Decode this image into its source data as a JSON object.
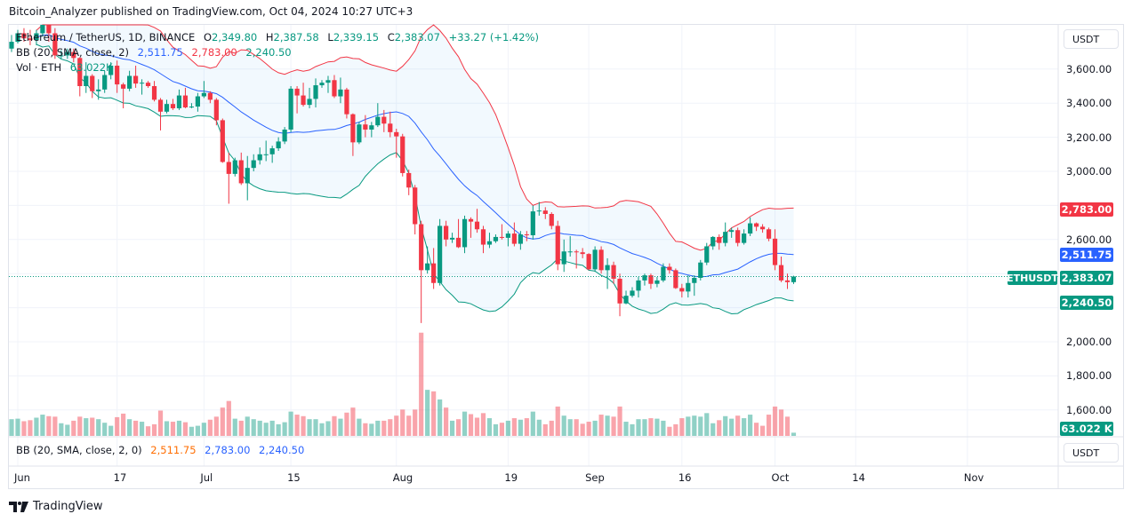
{
  "header": {
    "published": "Bitcoin_Analyzer published on TradingView.com, Oct 04, 2024 10:27 UTC+3"
  },
  "legend": {
    "symbol": "Ethereum / TetherUS, 1D, BINANCE",
    "o_label": "O",
    "o": "2,349.80",
    "h_label": "H",
    "h": "2,387.58",
    "l_label": "L",
    "l": "2,339.15",
    "c_label": "C",
    "c": "2,383.07",
    "change": "+33.27 (+1.42%)",
    "bb_label": "BB (20, SMA, close, 2)",
    "bb_basis": "2,511.75",
    "bb_upper": "2,783.00",
    "bb_lower": "2,240.50",
    "vol_label": "Vol · ETH",
    "vol_value": "63.022K"
  },
  "lower_pane": {
    "bb_label": "BB (20, SMA, close, 2, 0)",
    "v1": "2,511.75",
    "v2": "2,783.00",
    "v3": "2,240.50"
  },
  "axis": {
    "currency": "USDT",
    "price_labels": [
      "3,600.00",
      "3,400.00",
      "3,200.00",
      "3,000.00",
      "2,600.00",
      "2,000.00",
      "1,800.00",
      "1,600.00"
    ],
    "badges": {
      "upper": "2,783.00",
      "basis": "2,511.75",
      "last": "2,383.07",
      "lower": "2,240.50",
      "volume": "63.022 K",
      "symbol": "ETHUSDT"
    },
    "time_labels": [
      "Jun",
      "17",
      "Jul",
      "15",
      "Aug",
      "19",
      "Sep",
      "16",
      "Oct",
      "14",
      "Nov"
    ]
  },
  "footer": {
    "brand": "TradingView"
  },
  "colors": {
    "up": "#089981",
    "down": "#f23645",
    "basis": "#2962ff",
    "upper": "#f23645",
    "lower": "#089981",
    "band_fill": "#2196f3",
    "orange": "#ff6d00"
  },
  "chart_data": {
    "type": "candlestick",
    "symbol": "ETHUSDT",
    "interval": "1D",
    "start_date": "2024-05-31",
    "end_date": "2024-10-04",
    "ylim": [
      1500,
      3900
    ],
    "grid": true,
    "y_ticks": [
      1600,
      1800,
      2000,
      2200,
      2400,
      2600,
      2800,
      3000,
      3200,
      3400,
      3600
    ],
    "x_ticks": [
      {
        "date": "2024-06-01",
        "label": "Jun"
      },
      {
        "date": "2024-06-17",
        "label": "17"
      },
      {
        "date": "2024-07-01",
        "label": "Jul"
      },
      {
        "date": "2024-07-15",
        "label": "15"
      },
      {
        "date": "2024-08-01",
        "label": "Aug"
      },
      {
        "date": "2024-08-19",
        "label": "19"
      },
      {
        "date": "2024-09-01",
        "label": "Sep"
      },
      {
        "date": "2024-09-16",
        "label": "16"
      },
      {
        "date": "2024-10-01",
        "label": "Oct"
      },
      {
        "date": "2024-10-14",
        "label": "14"
      },
      {
        "date": "2024-11-01",
        "label": "Nov"
      }
    ],
    "indicators": {
      "bollinger": {
        "length": 20,
        "mult": 2,
        "last_basis": 2511.75,
        "last_upper": 2783.0,
        "last_lower": 2240.5
      }
    },
    "ohlc": [
      [
        3720,
        3800,
        3700,
        3760
      ],
      [
        3760,
        3830,
        3750,
        3810
      ],
      [
        3810,
        3840,
        3760,
        3780
      ],
      [
        3780,
        3830,
        3740,
        3770
      ],
      [
        3770,
        3830,
        3740,
        3810
      ],
      [
        3810,
        3890,
        3790,
        3865
      ],
      [
        3865,
        3880,
        3760,
        3810
      ],
      [
        3810,
        3840,
        3660,
        3680
      ],
      [
        3680,
        3710,
        3660,
        3680
      ],
      [
        3680,
        3720,
        3660,
        3700
      ],
      [
        3700,
        3720,
        3640,
        3665
      ],
      [
        3665,
        3670,
        3440,
        3500
      ],
      [
        3500,
        3640,
        3460,
        3560
      ],
      [
        3560,
        3570,
        3430,
        3470
      ],
      [
        3470,
        3540,
        3420,
        3480
      ],
      [
        3480,
        3590,
        3460,
        3565
      ],
      [
        3565,
        3640,
        3540,
        3620
      ],
      [
        3620,
        3650,
        3460,
        3510
      ],
      [
        3510,
        3520,
        3370,
        3485
      ],
      [
        3485,
        3590,
        3470,
        3560
      ],
      [
        3560,
        3620,
        3490,
        3515
      ],
      [
        3515,
        3540,
        3450,
        3520
      ],
      [
        3520,
        3530,
        3490,
        3500
      ],
      [
        3500,
        3530,
        3410,
        3420
      ],
      [
        3420,
        3430,
        3240,
        3350
      ],
      [
        3350,
        3420,
        3340,
        3395
      ],
      [
        3395,
        3425,
        3360,
        3370
      ],
      [
        3370,
        3480,
        3360,
        3445
      ],
      [
        3445,
        3490,
        3370,
        3375
      ],
      [
        3375,
        3400,
        3370,
        3380
      ],
      [
        3380,
        3460,
        3350,
        3440
      ],
      [
        3440,
        3530,
        3430,
        3460
      ],
      [
        3460,
        3470,
        3400,
        3420
      ],
      [
        3420,
        3430,
        3270,
        3300
      ],
      [
        3300,
        3310,
        3050,
        3055
      ],
      [
        3055,
        3110,
        2810,
        2985
      ],
      [
        2985,
        3080,
        2970,
        3065
      ],
      [
        3065,
        3110,
        2920,
        2930
      ],
      [
        2930,
        3090,
        2830,
        3020
      ],
      [
        3020,
        3100,
        3000,
        3065
      ],
      [
        3065,
        3140,
        3040,
        3100
      ],
      [
        3100,
        3180,
        3060,
        3100
      ],
      [
        3100,
        3150,
        3050,
        3135
      ],
      [
        3135,
        3200,
        3120,
        3175
      ],
      [
        3175,
        3260,
        3160,
        3245
      ],
      [
        3245,
        3500,
        3230,
        3485
      ],
      [
        3485,
        3500,
        3340,
        3445
      ],
      [
        3445,
        3520,
        3380,
        3390
      ],
      [
        3390,
        3490,
        3370,
        3425
      ],
      [
        3425,
        3545,
        3375,
        3505
      ],
      [
        3505,
        3535,
        3490,
        3520
      ],
      [
        3520,
        3560,
        3460,
        3535
      ],
      [
        3535,
        3565,
        3430,
        3440
      ],
      [
        3440,
        3550,
        3400,
        3480
      ],
      [
        3480,
        3490,
        3310,
        3335
      ],
      [
        3335,
        3340,
        3090,
        3170
      ],
      [
        3170,
        3290,
        3160,
        3275
      ],
      [
        3275,
        3330,
        3200,
        3245
      ],
      [
        3245,
        3290,
        3200,
        3270
      ],
      [
        3270,
        3400,
        3260,
        3320
      ],
      [
        3320,
        3360,
        3230,
        3280
      ],
      [
        3280,
        3350,
        3200,
        3230
      ],
      [
        3230,
        3250,
        3080,
        3205
      ],
      [
        3205,
        3220,
        2970,
        2990
      ],
      [
        2990,
        3010,
        2860,
        2905
      ],
      [
        2905,
        2920,
        2630,
        2690
      ],
      [
        2690,
        2710,
        2110,
        2420
      ],
      [
        2420,
        2560,
        2400,
        2460
      ],
      [
        2460,
        2550,
        2310,
        2345
      ],
      [
        2345,
        2720,
        2330,
        2680
      ],
      [
        2680,
        2710,
        2560,
        2600
      ],
      [
        2600,
        2640,
        2580,
        2610
      ],
      [
        2610,
        2720,
        2550,
        2555
      ],
      [
        2555,
        2740,
        2520,
        2720
      ],
      [
        2720,
        2730,
        2610,
        2705
      ],
      [
        2705,
        2780,
        2640,
        2660
      ],
      [
        2660,
        2680,
        2520,
        2570
      ],
      [
        2570,
        2640,
        2550,
        2590
      ],
      [
        2590,
        2630,
        2580,
        2615
      ],
      [
        2615,
        2690,
        2600,
        2610
      ],
      [
        2610,
        2650,
        2560,
        2635
      ],
      [
        2635,
        2700,
        2560,
        2575
      ],
      [
        2575,
        2650,
        2540,
        2630
      ],
      [
        2630,
        2650,
        2590,
        2625
      ],
      [
        2625,
        2800,
        2600,
        2765
      ],
      [
        2765,
        2820,
        2740,
        2770
      ],
      [
        2770,
        2790,
        2720,
        2750
      ],
      [
        2750,
        2760,
        2660,
        2680
      ],
      [
        2680,
        2710,
        2420,
        2455
      ],
      [
        2455,
        2600,
        2410,
        2530
      ],
      [
        2530,
        2620,
        2500,
        2530
      ],
      [
        2530,
        2540,
        2430,
        2525
      ],
      [
        2525,
        2550,
        2490,
        2515
      ],
      [
        2515,
        2520,
        2420,
        2425
      ],
      [
        2425,
        2560,
        2410,
        2540
      ],
      [
        2540,
        2560,
        2400,
        2420
      ],
      [
        2420,
        2490,
        2310,
        2450
      ],
      [
        2450,
        2470,
        2340,
        2370
      ],
      [
        2370,
        2400,
        2150,
        2225
      ],
      [
        2225,
        2300,
        2220,
        2270
      ],
      [
        2270,
        2320,
        2260,
        2300
      ],
      [
        2300,
        2380,
        2260,
        2360
      ],
      [
        2360,
        2400,
        2330,
        2390
      ],
      [
        2390,
        2400,
        2310,
        2340
      ],
      [
        2340,
        2380,
        2320,
        2360
      ],
      [
        2360,
        2460,
        2350,
        2440
      ],
      [
        2440,
        2460,
        2400,
        2420
      ],
      [
        2420,
        2430,
        2310,
        2315
      ],
      [
        2315,
        2340,
        2260,
        2295
      ],
      [
        2295,
        2390,
        2260,
        2345
      ],
      [
        2345,
        2390,
        2270,
        2375
      ],
      [
        2375,
        2480,
        2360,
        2465
      ],
      [
        2465,
        2580,
        2450,
        2560
      ],
      [
        2560,
        2620,
        2540,
        2615
      ],
      [
        2615,
        2630,
        2540,
        2580
      ],
      [
        2580,
        2700,
        2560,
        2645
      ],
      [
        2645,
        2670,
        2610,
        2655
      ],
      [
        2655,
        2670,
        2560,
        2580
      ],
      [
        2580,
        2660,
        2570,
        2635
      ],
      [
        2635,
        2730,
        2620,
        2695
      ],
      [
        2695,
        2700,
        2650,
        2675
      ],
      [
        2675,
        2690,
        2640,
        2660
      ],
      [
        2660,
        2670,
        2590,
        2605
      ],
      [
        2605,
        2660,
        2420,
        2450
      ],
      [
        2450,
        2500,
        2350,
        2360
      ],
      [
        2360,
        2400,
        2310,
        2350
      ],
      [
        2349.8,
        2387.58,
        2339.15,
        2383.07
      ]
    ],
    "volume_k": [
      330,
      340,
      290,
      310,
      360,
      420,
      390,
      380,
      250,
      220,
      300,
      380,
      350,
      360,
      330,
      260,
      200,
      370,
      440,
      330,
      300,
      280,
      190,
      230,
      500,
      290,
      280,
      300,
      270,
      180,
      200,
      260,
      320,
      380,
      560,
      690,
      340,
      300,
      380,
      330,
      300,
      260,
      300,
      230,
      270,
      480,
      420,
      390,
      330,
      330,
      250,
      290,
      390,
      340,
      460,
      560,
      340,
      250,
      240,
      300,
      300,
      330,
      400,
      520,
      400,
      520,
      2040,
      910,
      880,
      720,
      560,
      300,
      330,
      480,
      430,
      360,
      450,
      350,
      230,
      260,
      300,
      350,
      320,
      350,
      480,
      320,
      230,
      300,
      580,
      400,
      330,
      330,
      240,
      280,
      300,
      420,
      400,
      380,
      580,
      280,
      230,
      330,
      330,
      350,
      340,
      300,
      180,
      230,
      350,
      380,
      400,
      380,
      450,
      250,
      310,
      390,
      340,
      400,
      350,
      420,
      260,
      200,
      420,
      580,
      520,
      380,
      63.022
    ]
  }
}
